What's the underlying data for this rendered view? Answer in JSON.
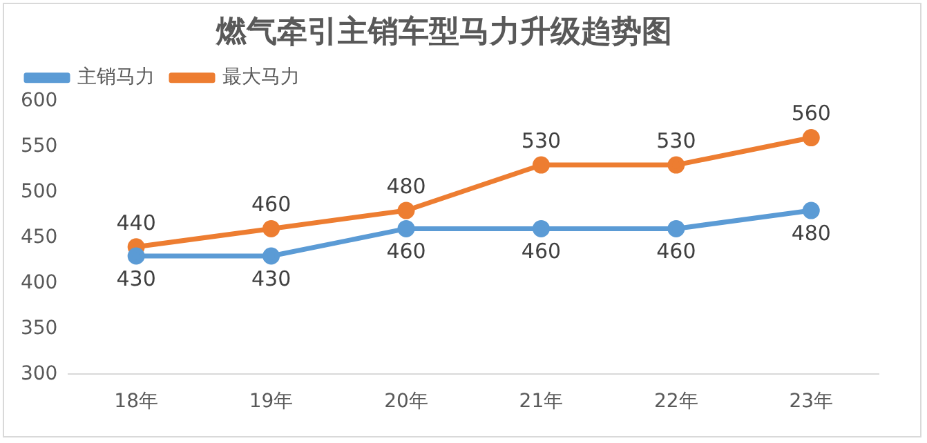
{
  "chart_data": {
    "type": "line",
    "title": "燃气牵引主销车型马力升级趋势图",
    "categories": [
      "18年",
      "19年",
      "20年",
      "21年",
      "22年",
      "23年"
    ],
    "series": [
      {
        "name": "主销马力",
        "color": "#5b9bd5",
        "values": [
          430,
          430,
          460,
          460,
          460,
          480
        ]
      },
      {
        "name": "最大马力",
        "color": "#ed7d31",
        "values": [
          440,
          460,
          480,
          530,
          530,
          560
        ]
      }
    ],
    "ylim": [
      300,
      600
    ],
    "yticks": [
      300,
      350,
      400,
      450,
      500,
      550,
      600
    ],
    "grid": false,
    "legend": "top left",
    "marker": "circle",
    "data_labels": true
  }
}
